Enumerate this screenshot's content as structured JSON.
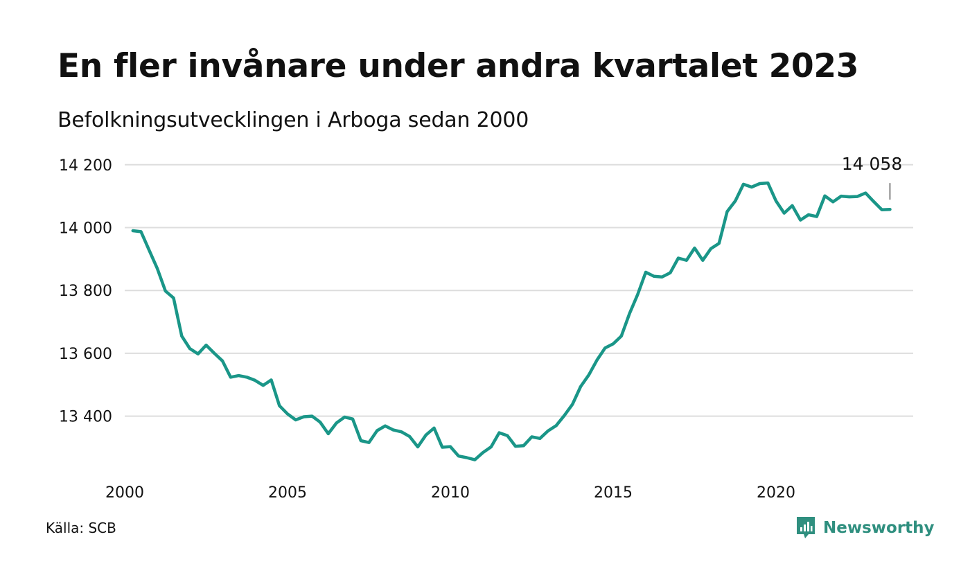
{
  "brand": {
    "name": "Newsworthy",
    "color": "#2f8f7f",
    "icon": "newsworthy-logo-icon"
  },
  "source": "Källa: SCB",
  "colors": {
    "line": "#1a9688",
    "grid": "#dddddd",
    "text": "#111111"
  },
  "chart_data": {
    "type": "line",
    "title": "En fler invånare under andra kvartalet 2023",
    "subtitle": "Befolkningsutvecklingen i Arboga sedan 2000",
    "xlabel": "",
    "ylabel": "",
    "xlim": [
      2000,
      2024
    ],
    "ylim": [
      13200,
      14220
    ],
    "x_ticks": [
      2000,
      2005,
      2010,
      2015,
      2020
    ],
    "x_tick_labels": [
      "2000",
      "2005",
      "2010",
      "2015",
      "2020"
    ],
    "y_ticks": [
      13400,
      13600,
      13800,
      14000,
      14200
    ],
    "y_tick_labels": [
      "13 400",
      "13 600",
      "13 800",
      "14 000",
      "14 200"
    ],
    "grid": true,
    "legend": "none",
    "end_label": "14 058",
    "x": [
      2000.25,
      2000.5,
      2000.75,
      2001.0,
      2001.25,
      2001.5,
      2001.75,
      2002.0,
      2002.25,
      2002.5,
      2002.75,
      2003.0,
      2003.25,
      2003.5,
      2003.75,
      2004.0,
      2004.25,
      2004.5,
      2004.75,
      2005.0,
      2005.25,
      2005.5,
      2005.75,
      2006.0,
      2006.25,
      2006.5,
      2006.75,
      2007.0,
      2007.25,
      2007.5,
      2007.75,
      2008.0,
      2008.25,
      2008.5,
      2008.75,
      2009.0,
      2009.25,
      2009.5,
      2009.75,
      2010.0,
      2010.25,
      2010.5,
      2010.75,
      2011.0,
      2011.25,
      2011.5,
      2011.75,
      2012.0,
      2012.25,
      2012.5,
      2012.75,
      2013.0,
      2013.25,
      2013.5,
      2013.75,
      2014.0,
      2014.25,
      2014.5,
      2014.75,
      2015.0,
      2015.25,
      2015.5,
      2015.75,
      2016.0,
      2016.25,
      2016.5,
      2016.75,
      2017.0,
      2017.25,
      2017.5,
      2017.75,
      2018.0,
      2018.25,
      2018.5,
      2018.75,
      2019.0,
      2019.25,
      2019.5,
      2019.75,
      2020.0,
      2020.25,
      2020.5,
      2020.75,
      2021.0,
      2021.25,
      2021.5,
      2021.75,
      2022.0,
      2022.25,
      2022.5,
      2022.75,
      2023.0,
      2023.25,
      2023.5
    ],
    "series": [
      {
        "values": [
          13990,
          13987,
          13928,
          13870,
          13798,
          13776,
          13655,
          13615,
          13598,
          13626,
          13600,
          13576,
          13524,
          13529,
          13524,
          13514,
          13498,
          13515,
          13433,
          13407,
          13388,
          13398,
          13400,
          13381,
          13344,
          13378,
          13397,
          13391,
          13322,
          13316,
          13354,
          13369,
          13356,
          13350,
          13335,
          13302,
          13340,
          13362,
          13301,
          13303,
          13273,
          13268,
          13261,
          13284,
          13302,
          13347,
          13338,
          13304,
          13306,
          13334,
          13329,
          13353,
          13370,
          13402,
          13438,
          13494,
          13531,
          13578,
          13617,
          13630,
          13655,
          13726,
          13787,
          13858,
          13845,
          13843,
          13856,
          13903,
          13896,
          13935,
          13896,
          13933,
          13950,
          14051,
          14085,
          14138,
          14129,
          14140,
          14142,
          14085,
          14046,
          14070,
          14024,
          14041,
          14035,
          14101,
          14082,
          14100,
          14098,
          14099,
          14110,
          14083,
          14057,
          14058
        ]
      }
    ]
  }
}
